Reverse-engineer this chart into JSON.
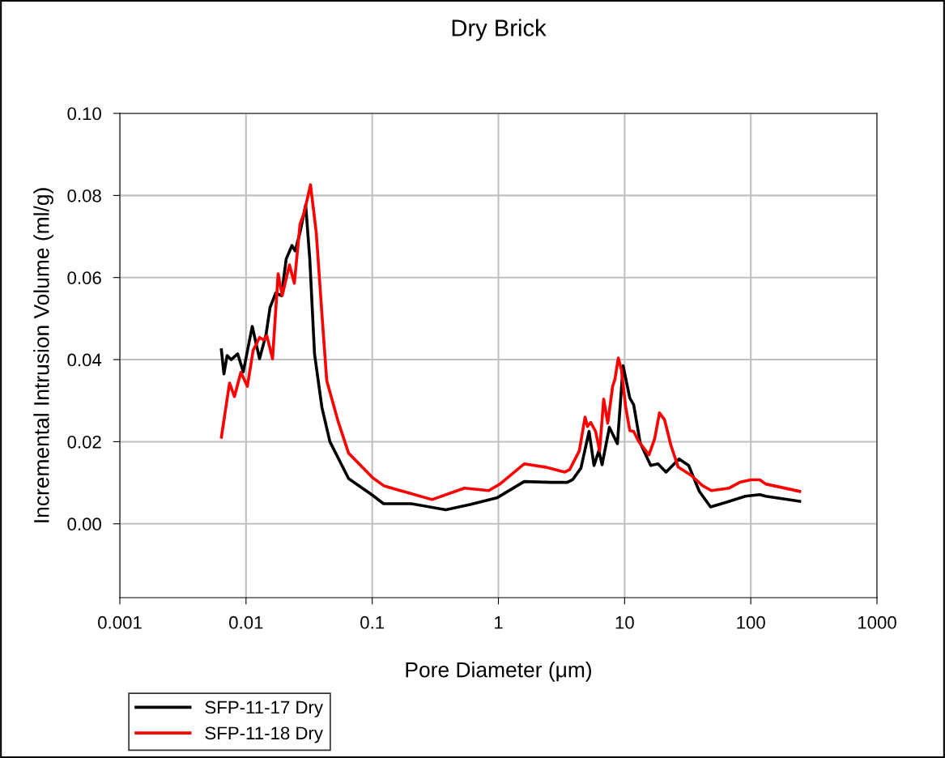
{
  "chart_data": {
    "type": "line",
    "title": "Dry Brick",
    "xlabel": "Pore Diameter (μm)",
    "ylabel": "Incremental Intrusion Volume (ml/g)",
    "log": "x",
    "xlim": [
      0.001,
      1000
    ],
    "xticks": [
      {
        "value": 0.001,
        "label": "0.001"
      },
      {
        "value": 0.01,
        "label": "0.01"
      },
      {
        "value": 0.1,
        "label": "0.1"
      },
      {
        "value": 1,
        "label": "1"
      },
      {
        "value": 10,
        "label": "10"
      },
      {
        "value": 100,
        "label": "100"
      },
      {
        "value": 1000,
        "label": "1000"
      }
    ],
    "ylim": [
      -0.018,
      0.1
    ],
    "yticks": [
      {
        "value": 0,
        "label": "0.00"
      },
      {
        "value": 0.02,
        "label": "0.02"
      },
      {
        "value": 0.04,
        "label": "0.04"
      },
      {
        "value": 0.06,
        "label": "0.06"
      },
      {
        "value": 0.08,
        "label": "0.08"
      },
      {
        "value": 0.1,
        "label": "0.10"
      }
    ],
    "grid": true,
    "legend": "bottom left",
    "marker": "none",
    "line_style": "solid",
    "series": [
      {
        "name": "SFP-11-17 Dry",
        "color": "#000000",
        "x": [
          0.00638,
          0.00668,
          0.00708,
          0.00762,
          0.00859,
          0.00951,
          0.0112,
          0.0128,
          0.0144,
          0.0155,
          0.0172,
          0.0191,
          0.0208,
          0.0231,
          0.0245,
          0.0268,
          0.0297,
          0.032,
          0.0349,
          0.0399,
          0.0462,
          0.065,
          0.101,
          0.123,
          0.203,
          0.383,
          0.596,
          0.971,
          1.6,
          2.61,
          3.51,
          3.89,
          4.51,
          5.23,
          5.72,
          6.25,
          6.63,
          7.58,
          8.77,
          9.73,
          11.0,
          11.8,
          13.3,
          16.1,
          18.4,
          21.3,
          27.0,
          32.2,
          39.1,
          48.0,
          64.6,
          90.6,
          118,
          131,
          244
        ],
        "values": [
          0.0424,
          0.0365,
          0.041,
          0.04,
          0.0414,
          0.037,
          0.0481,
          0.0402,
          0.0461,
          0.0527,
          0.0562,
          0.0556,
          0.0645,
          0.0678,
          0.0665,
          0.071,
          0.0777,
          0.0645,
          0.0414,
          0.0284,
          0.02,
          0.011,
          0.0069,
          0.0049,
          0.0049,
          0.0034,
          0.0047,
          0.0063,
          0.0103,
          0.0101,
          0.0101,
          0.0108,
          0.0136,
          0.0225,
          0.0142,
          0.0178,
          0.0144,
          0.0235,
          0.0195,
          0.0385,
          0.0306,
          0.029,
          0.0197,
          0.0142,
          0.0146,
          0.0126,
          0.0158,
          0.0142,
          0.0079,
          0.0041,
          0.0053,
          0.0067,
          0.0071,
          0.0067,
          0.0055
        ]
      },
      {
        "name": "SFP-11-18 Dry",
        "color": "#ff0000",
        "x": [
          0.00638,
          0.0074,
          0.00809,
          0.0091,
          0.01025,
          0.01137,
          0.0128,
          0.01377,
          0.01462,
          0.01622,
          0.01796,
          0.01935,
          0.02209,
          0.02414,
          0.02679,
          0.02884,
          0.03243,
          0.036,
          0.0399,
          0.0436,
          0.0536,
          0.065,
          0.101,
          0.123,
          0.158,
          0.298,
          0.538,
          0.838,
          1.03,
          1.6,
          2.36,
          3.36,
          3.67,
          4.38,
          4.86,
          5.08,
          5.39,
          5.89,
          6.34,
          6.83,
          7.35,
          8.04,
          8.4,
          8.91,
          9.45,
          10.2,
          11.0,
          11.8,
          12.9,
          15.6,
          17.3,
          18.9,
          20.7,
          23.3,
          26.6,
          33.7,
          41.4,
          48.7,
          67.5,
          81.7,
          100,
          118,
          131,
          244
        ],
        "values": [
          0.0211,
          0.0343,
          0.031,
          0.0369,
          0.0335,
          0.0422,
          0.0454,
          0.0448,
          0.0458,
          0.0402,
          0.0609,
          0.0556,
          0.0631,
          0.0586,
          0.073,
          0.0757,
          0.0826,
          0.071,
          0.0513,
          0.0349,
          0.025,
          0.0172,
          0.0112,
          0.0093,
          0.0083,
          0.0059,
          0.0087,
          0.0081,
          0.0097,
          0.0146,
          0.0138,
          0.0126,
          0.0132,
          0.0178,
          0.026,
          0.0237,
          0.0247,
          0.0225,
          0.0178,
          0.0304,
          0.0245,
          0.0335,
          0.0353,
          0.0404,
          0.0375,
          0.0284,
          0.0227,
          0.0225,
          0.0201,
          0.0168,
          0.0207,
          0.027,
          0.0254,
          0.0191,
          0.0138,
          0.0118,
          0.0093,
          0.0081,
          0.0087,
          0.0101,
          0.0107,
          0.0107,
          0.0097,
          0.0079
        ]
      }
    ]
  }
}
